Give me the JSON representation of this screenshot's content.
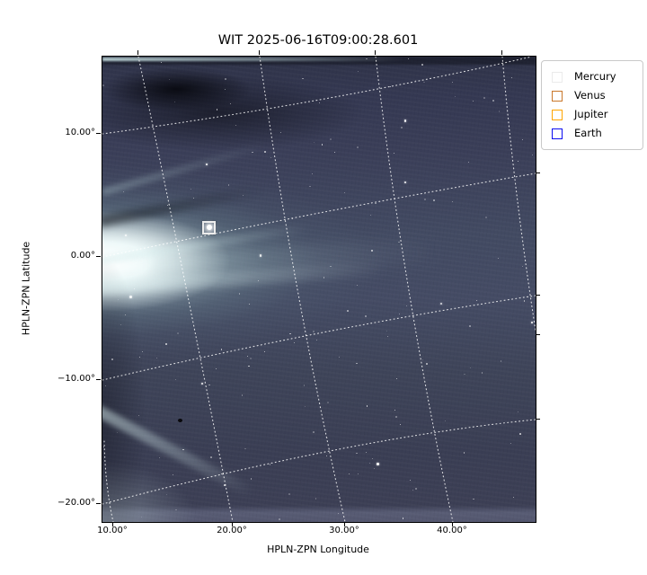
{
  "title": "WIT 2025-06-16T09:00:28.601",
  "axes": {
    "xlabel": "HPLN-ZPN Longitude",
    "ylabel": "HPLN-ZPN Latitude",
    "x_ticks": [
      {
        "value": 10,
        "label": "10.00°"
      },
      {
        "value": 20,
        "label": "20.00°"
      },
      {
        "value": 30,
        "label": "30.00°"
      },
      {
        "value": 40,
        "label": "40.00°"
      }
    ],
    "y_ticks": [
      {
        "value": 10,
        "label": "10.00°"
      },
      {
        "value": 0,
        "label": "0.00°"
      },
      {
        "value": -10,
        "label": "−10.00°"
      },
      {
        "value": -20,
        "label": "−20.00°"
      }
    ]
  },
  "legend": {
    "items": [
      {
        "label": "Mercury",
        "color": "#ebebeb"
      },
      {
        "label": "Venus",
        "color": "#c9772a"
      },
      {
        "label": "Jupiter",
        "color": "#ffa500"
      },
      {
        "label": "Earth",
        "color": "#0d0df0"
      }
    ]
  },
  "chart_data": {
    "type": "heatmap",
    "title": "WIT 2025-06-16T09:00:28.601",
    "xlabel": "HPLN-ZPN Longitude",
    "ylabel": "HPLN-ZPN Latitude",
    "xlim": [
      9.2,
      47.7
    ],
    "ylim": [
      -21.5,
      16.3
    ],
    "grid": true,
    "grid_style": "dotted white, curved ZPN projection graticule every 10°",
    "x_tick_values_deg": [
      10,
      20,
      30,
      40
    ],
    "y_tick_values_deg": [
      10,
      0,
      -10,
      -20
    ],
    "image_description": "Wide-field heliospheric imager frame: bright white coronal outflow fans rightward from the left (sunward) edge near 0° latitude over a dark slate-purple starfield; dark patch at top-left, faint streamer at bottom-left corner",
    "legend_position": "upper right, outside axes",
    "series": [
      {
        "name": "Mercury",
        "type": "scatter",
        "marker": "square-open",
        "color": "#ebebeb",
        "points": [
          {
            "lon": 18.0,
            "lat": 2.3
          }
        ]
      },
      {
        "name": "Venus",
        "type": "scatter",
        "marker": "square-open",
        "color": "#c9772a",
        "points": []
      },
      {
        "name": "Jupiter",
        "type": "scatter",
        "marker": "square-open",
        "color": "#ffa500",
        "points": []
      },
      {
        "name": "Earth",
        "type": "scatter",
        "marker": "square-open",
        "color": "#0d0df0",
        "points": []
      }
    ]
  }
}
